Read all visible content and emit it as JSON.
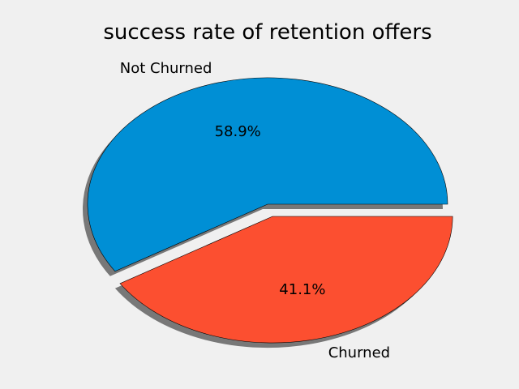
{
  "chart_data": {
    "type": "pie",
    "title": "success rate of retention offers",
    "labels": [
      "Not Churned",
      "Churned"
    ],
    "values": [
      58.9,
      41.1
    ],
    "autopct": [
      "58.9%",
      "41.1%"
    ],
    "colors": [
      "#008fd5",
      "#fc4f30"
    ],
    "explode": [
      0,
      0.1
    ],
    "shadow": true,
    "start_angle_deg": 0,
    "counterclock": true
  }
}
